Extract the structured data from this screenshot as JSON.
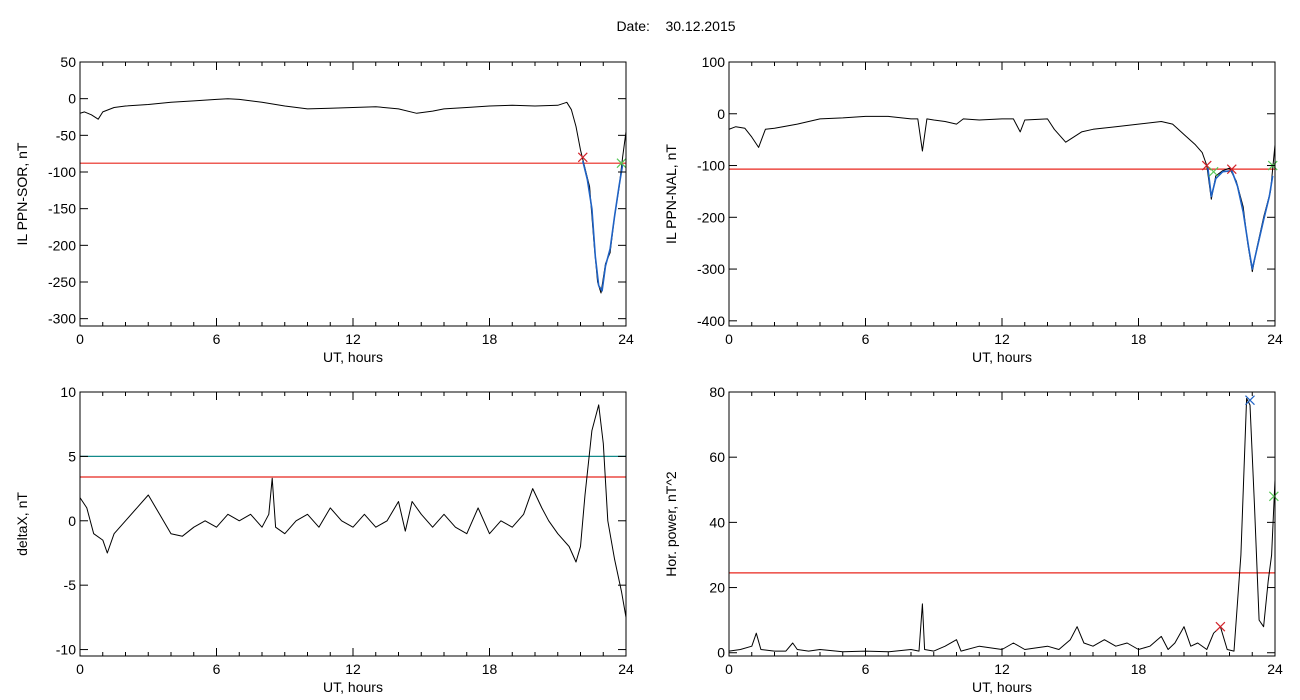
{
  "figure": {
    "date_label": "Date:",
    "date_value": "30.12.2015"
  },
  "colors": {
    "threshold_red": "#e8261d",
    "threshold_teal": "#138a8a",
    "event_blue": "#1f62c4",
    "line_black": "#000000",
    "marker_red": "#d2232a",
    "marker_green": "#55c855",
    "marker_blue": "#1f62c4"
  },
  "chart_data": [
    {
      "id": "sor",
      "type": "line",
      "title": "",
      "xlabel": "UT, hours",
      "ylabel": "IL PPN-SOR, nT",
      "xlim": [
        0,
        24
      ],
      "ylim": [
        -310,
        50
      ],
      "xticks": [
        0,
        6,
        12,
        18,
        24
      ],
      "yticks": [
        50,
        0,
        -50,
        -100,
        -150,
        -200,
        -250,
        -300
      ],
      "thresholds": [
        {
          "value": -88,
          "color": "threshold_red"
        }
      ],
      "markers": [
        {
          "x": 22.1,
          "y": -80,
          "color": "marker_red"
        },
        {
          "x": 23.8,
          "y": -88,
          "color": "marker_green"
        }
      ],
      "series": [
        {
          "style": "line",
          "points": [
            [
              0,
              -20
            ],
            [
              0.2,
              -18
            ],
            [
              0.5,
              -22
            ],
            [
              0.8,
              -28
            ],
            [
              1,
              -18
            ],
            [
              1.5,
              -12
            ],
            [
              2,
              -10
            ],
            [
              3,
              -8
            ],
            [
              4,
              -5
            ],
            [
              5,
              -3
            ],
            [
              6,
              -1
            ],
            [
              6.5,
              0
            ],
            [
              7,
              -1
            ],
            [
              8,
              -5
            ],
            [
              9,
              -10
            ],
            [
              10,
              -14
            ],
            [
              11,
              -13
            ],
            [
              12,
              -12
            ],
            [
              13,
              -11
            ],
            [
              14,
              -14
            ],
            [
              14.8,
              -20
            ],
            [
              15.5,
              -17
            ],
            [
              16,
              -14
            ],
            [
              17,
              -12
            ],
            [
              18,
              -10
            ],
            [
              19,
              -9
            ],
            [
              20,
              -10
            ],
            [
              21,
              -9
            ],
            [
              21.4,
              -5
            ],
            [
              21.6,
              -15
            ],
            [
              21.8,
              -38
            ],
            [
              22,
              -70
            ],
            [
              22.2,
              -95
            ],
            [
              22.4,
              -120
            ],
            [
              22.6,
              -200
            ],
            [
              22.75,
              -250
            ],
            [
              22.9,
              -265
            ],
            [
              23.1,
              -225
            ],
            [
              23.3,
              -210
            ],
            [
              23.5,
              -160
            ],
            [
              23.7,
              -120
            ],
            [
              23.85,
              -80
            ],
            [
              24,
              -45
            ]
          ]
        },
        {
          "style": "event",
          "color": "event_blue",
          "points": [
            [
              22.1,
              -85
            ],
            [
              22.3,
              -110
            ],
            [
              22.5,
              -150
            ],
            [
              22.65,
              -215
            ],
            [
              22.8,
              -255
            ],
            [
              22.95,
              -262
            ],
            [
              23.1,
              -228
            ],
            [
              23.3,
              -205
            ],
            [
              23.5,
              -160
            ],
            [
              23.7,
              -118
            ],
            [
              23.85,
              -90
            ]
          ]
        }
      ]
    },
    {
      "id": "nal",
      "type": "line",
      "title": "",
      "xlabel": "UT, hours",
      "ylabel": "IL PPN-NAL, nT",
      "xlim": [
        0,
        24
      ],
      "ylim": [
        -410,
        100
      ],
      "xticks": [
        0,
        6,
        12,
        18,
        24
      ],
      "yticks": [
        100,
        0,
        -100,
        -200,
        -300,
        -400
      ],
      "thresholds": [
        {
          "value": -107,
          "color": "threshold_red"
        }
      ],
      "markers": [
        {
          "x": 21.0,
          "y": -100,
          "color": "marker_red"
        },
        {
          "x": 21.3,
          "y": -112,
          "color": "marker_green"
        },
        {
          "x": 22.1,
          "y": -107,
          "color": "marker_red"
        },
        {
          "x": 23.9,
          "y": -100,
          "color": "marker_green"
        }
      ],
      "series": [
        {
          "style": "line",
          "points": [
            [
              0,
              -30
            ],
            [
              0.3,
              -25
            ],
            [
              0.7,
              -28
            ],
            [
              1,
              -45
            ],
            [
              1.3,
              -65
            ],
            [
              1.6,
              -30
            ],
            [
              2,
              -28
            ],
            [
              3,
              -20
            ],
            [
              4,
              -10
            ],
            [
              5,
              -8
            ],
            [
              6,
              -5
            ],
            [
              7,
              -5
            ],
            [
              8,
              -10
            ],
            [
              8.3,
              -10
            ],
            [
              8.5,
              -72
            ],
            [
              8.7,
              -10
            ],
            [
              9,
              -12
            ],
            [
              9.5,
              -15
            ],
            [
              10,
              -20
            ],
            [
              10.3,
              -10
            ],
            [
              11,
              -12
            ],
            [
              12,
              -10
            ],
            [
              12.5,
              -10
            ],
            [
              12.8,
              -35
            ],
            [
              13,
              -12
            ],
            [
              14,
              -10
            ],
            [
              14.3,
              -30
            ],
            [
              14.8,
              -55
            ],
            [
              15.5,
              -35
            ],
            [
              16,
              -30
            ],
            [
              17,
              -25
            ],
            [
              18,
              -20
            ],
            [
              19,
              -15
            ],
            [
              19.5,
              -20
            ],
            [
              20,
              -40
            ],
            [
              20.5,
              -60
            ],
            [
              20.8,
              -75
            ],
            [
              21,
              -100
            ],
            [
              21.2,
              -165
            ],
            [
              21.4,
              -120
            ],
            [
              21.7,
              -110
            ],
            [
              22,
              -105
            ],
            [
              22.3,
              -130
            ],
            [
              22.6,
              -180
            ],
            [
              22.8,
              -250
            ],
            [
              23,
              -305
            ],
            [
              23.2,
              -260
            ],
            [
              23.5,
              -200
            ],
            [
              23.8,
              -150
            ],
            [
              24,
              -60
            ]
          ]
        },
        {
          "style": "event",
          "color": "event_blue",
          "points": [
            [
              21.05,
              -105
            ],
            [
              21.2,
              -160
            ],
            [
              21.4,
              -125
            ],
            [
              21.7,
              -112
            ],
            [
              22.1,
              -110
            ],
            [
              22.35,
              -140
            ],
            [
              22.6,
              -190
            ],
            [
              22.85,
              -260
            ],
            [
              23.0,
              -300
            ],
            [
              23.2,
              -262
            ],
            [
              23.5,
              -205
            ],
            [
              23.75,
              -160
            ],
            [
              23.9,
              -120
            ]
          ]
        }
      ]
    },
    {
      "id": "deltax",
      "type": "line",
      "title": "",
      "xlabel": "UT, hours",
      "ylabel": "deltaX, nT",
      "xlim": [
        0,
        24
      ],
      "ylim": [
        -10.5,
        10
      ],
      "xticks": [
        0,
        6,
        12,
        18,
        24
      ],
      "yticks": [
        10,
        5,
        0,
        -5,
        -10
      ],
      "thresholds": [
        {
          "value": 5,
          "color": "threshold_teal"
        },
        {
          "value": 3.4,
          "color": "threshold_red"
        }
      ],
      "markers": [],
      "series": [
        {
          "style": "line",
          "points": [
            [
              0,
              1.8
            ],
            [
              0.3,
              1
            ],
            [
              0.6,
              -1
            ],
            [
              1,
              -1.5
            ],
            [
              1.2,
              -2.5
            ],
            [
              1.5,
              -1
            ],
            [
              2,
              0
            ],
            [
              2.5,
              1
            ],
            [
              3,
              2
            ],
            [
              3.5,
              0.5
            ],
            [
              4,
              -1
            ],
            [
              4.5,
              -1.2
            ],
            [
              5,
              -0.5
            ],
            [
              5.5,
              0
            ],
            [
              6,
              -0.5
            ],
            [
              6.5,
              0.5
            ],
            [
              7,
              0
            ],
            [
              7.5,
              0.5
            ],
            [
              8,
              -0.5
            ],
            [
              8.3,
              0.5
            ],
            [
              8.45,
              3.3
            ],
            [
              8.6,
              -0.5
            ],
            [
              9,
              -1
            ],
            [
              9.5,
              0
            ],
            [
              10,
              0.5
            ],
            [
              10.5,
              -0.5
            ],
            [
              11,
              1
            ],
            [
              11.5,
              0
            ],
            [
              12,
              -0.5
            ],
            [
              12.5,
              0.5
            ],
            [
              13,
              -0.5
            ],
            [
              13.5,
              0
            ],
            [
              14,
              1.5
            ],
            [
              14.3,
              -0.8
            ],
            [
              14.6,
              1.5
            ],
            [
              15,
              0.5
            ],
            [
              15.5,
              -0.5
            ],
            [
              16,
              0.5
            ],
            [
              16.5,
              -0.5
            ],
            [
              17,
              -1
            ],
            [
              17.5,
              1
            ],
            [
              18,
              -1
            ],
            [
              18.5,
              0
            ],
            [
              19,
              -0.5
            ],
            [
              19.5,
              0.5
            ],
            [
              19.9,
              2.5
            ],
            [
              20.3,
              1
            ],
            [
              20.6,
              0
            ],
            [
              21,
              -1
            ],
            [
              21.5,
              -2
            ],
            [
              21.8,
              -3.2
            ],
            [
              22,
              -2
            ],
            [
              22.2,
              2
            ],
            [
              22.5,
              7
            ],
            [
              22.8,
              9
            ],
            [
              23,
              6
            ],
            [
              23.2,
              0
            ],
            [
              23.5,
              -3
            ],
            [
              23.8,
              -5.5
            ],
            [
              24,
              -7.5
            ]
          ]
        }
      ]
    },
    {
      "id": "power",
      "type": "line",
      "title": "",
      "xlabel": "UT, hours",
      "ylabel": "Hor. power, nT^2",
      "xlim": [
        0,
        24
      ],
      "ylim": [
        -1,
        80
      ],
      "xticks": [
        0,
        6,
        12,
        18,
        24
      ],
      "yticks": [
        80,
        60,
        40,
        20,
        0
      ],
      "thresholds": [
        {
          "value": 24.5,
          "color": "threshold_red"
        }
      ],
      "markers": [
        {
          "x": 21.6,
          "y": 8,
          "color": "marker_red"
        },
        {
          "x": 22.9,
          "y": 77.5,
          "color": "marker_blue"
        },
        {
          "x": 23.95,
          "y": 48,
          "color": "marker_green"
        }
      ],
      "series": [
        {
          "style": "line",
          "points": [
            [
              0,
              0.5
            ],
            [
              0.5,
              1
            ],
            [
              1,
              2
            ],
            [
              1.2,
              6
            ],
            [
              1.4,
              1
            ],
            [
              2,
              0.5
            ],
            [
              2.5,
              0.5
            ],
            [
              2.8,
              3
            ],
            [
              3,
              1
            ],
            [
              3.5,
              0.5
            ],
            [
              4,
              1
            ],
            [
              5,
              0.3
            ],
            [
              6,
              0.5
            ],
            [
              7,
              0.3
            ],
            [
              8,
              1
            ],
            [
              8.35,
              0.5
            ],
            [
              8.5,
              15
            ],
            [
              8.6,
              1
            ],
            [
              9,
              0.5
            ],
            [
              9.5,
              2
            ],
            [
              10,
              4
            ],
            [
              10.2,
              0.5
            ],
            [
              11,
              2
            ],
            [
              12,
              1
            ],
            [
              12.5,
              3
            ],
            [
              13,
              1
            ],
            [
              14,
              2
            ],
            [
              14.5,
              1
            ],
            [
              15,
              4
            ],
            [
              15.3,
              8
            ],
            [
              15.6,
              3
            ],
            [
              16,
              2
            ],
            [
              16.5,
              4
            ],
            [
              17,
              2
            ],
            [
              17.5,
              3
            ],
            [
              18,
              1
            ],
            [
              18.5,
              2
            ],
            [
              19,
              5
            ],
            [
              19.3,
              1
            ],
            [
              19.6,
              3
            ],
            [
              20,
              8
            ],
            [
              20.3,
              2
            ],
            [
              20.6,
              3
            ],
            [
              21,
              1
            ],
            [
              21.3,
              6
            ],
            [
              21.6,
              8
            ],
            [
              21.9,
              1
            ],
            [
              22.2,
              0.5
            ],
            [
              22.5,
              30
            ],
            [
              22.75,
              78
            ],
            [
              22.9,
              76
            ],
            [
              23.1,
              45
            ],
            [
              23.3,
              10
            ],
            [
              23.5,
              8
            ],
            [
              23.7,
              22
            ],
            [
              23.85,
              30
            ],
            [
              24,
              53
            ]
          ]
        }
      ]
    }
  ]
}
